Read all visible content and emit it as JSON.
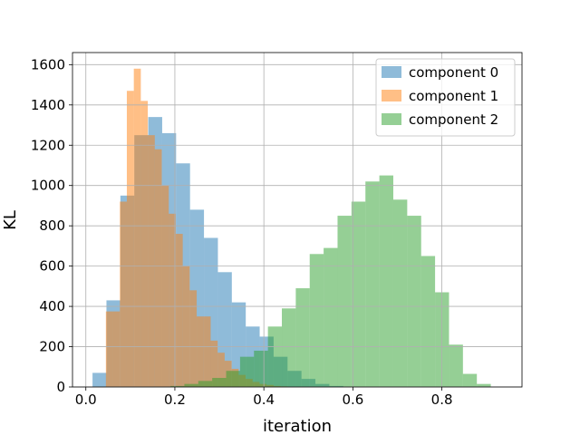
{
  "chart_data": {
    "type": "histogram",
    "title": "",
    "xlabel": "iteration",
    "ylabel": "KL",
    "xlim": [
      -0.03,
      0.98
    ],
    "ylim": [
      0,
      1660
    ],
    "xticks": [
      0.0,
      0.2,
      0.4,
      0.6,
      0.8
    ],
    "xtick_labels": [
      "0.0",
      "0.2",
      "0.4",
      "0.6",
      "0.8"
    ],
    "yticks": [
      0,
      200,
      400,
      600,
      800,
      1000,
      1200,
      1400,
      1600
    ],
    "ytick_labels": [
      "0",
      "200",
      "400",
      "600",
      "800",
      "1000",
      "1200",
      "1400",
      "1600"
    ],
    "grid": true,
    "legend_position": "top-right",
    "series": [
      {
        "name": "component 0",
        "color": "#1f77b4",
        "alpha": 0.5,
        "bin_start": 0.015,
        "bin_width": 0.0313,
        "counts": [
          70,
          430,
          950,
          1250,
          1340,
          1260,
          1110,
          880,
          740,
          570,
          420,
          300,
          250,
          150,
          80,
          40,
          15,
          5
        ]
      },
      {
        "name": "component 1",
        "color": "#ff7f0e",
        "alpha": 0.5,
        "bin_start": 0.045,
        "bin_width": 0.0157,
        "counts": [
          375,
          375,
          920,
          1470,
          1580,
          1420,
          1250,
          1180,
          1000,
          860,
          760,
          600,
          480,
          350,
          350,
          230,
          170,
          130,
          90,
          60,
          40,
          25,
          15,
          10,
          5,
          3
        ]
      },
      {
        "name": "component 2",
        "color": "#2ca02c",
        "alpha": 0.5,
        "bin_start": 0.19,
        "bin_width": 0.0313,
        "counts": [
          5,
          15,
          30,
          45,
          80,
          150,
          180,
          300,
          390,
          490,
          660,
          690,
          850,
          920,
          1020,
          1050,
          930,
          850,
          650,
          470,
          210,
          65,
          15
        ]
      }
    ]
  }
}
